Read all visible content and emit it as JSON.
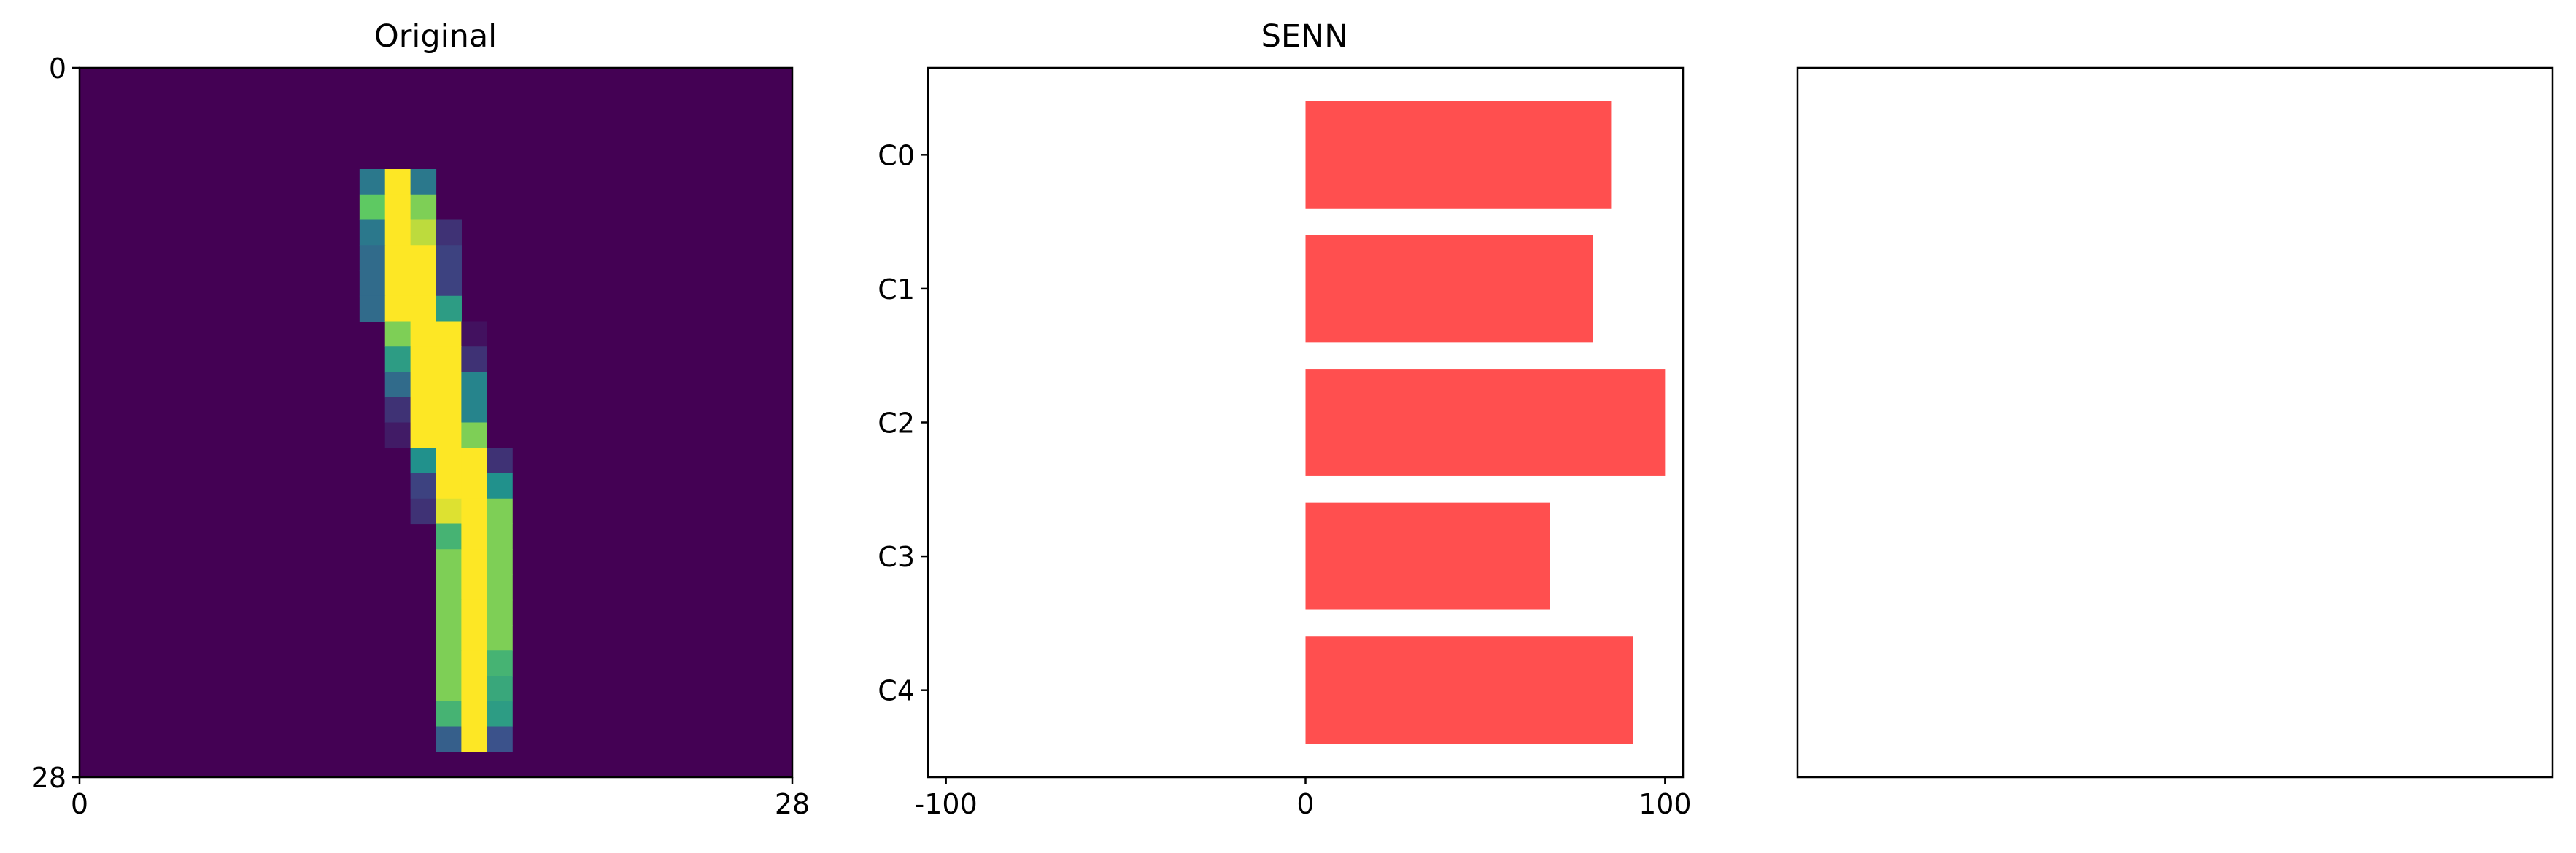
{
  "chart_data": [
    {
      "type": "heatmap",
      "title": "Original",
      "xlim": [
        0,
        28
      ],
      "ylim": [
        28,
        0
      ],
      "xticks": [
        "0",
        "28"
      ],
      "yticks": [
        "0",
        "28"
      ],
      "colormap": "viridis",
      "value_range": [
        0,
        1
      ],
      "pixels": [
        {
          "row": 4,
          "col": 11,
          "v": 0.4
        },
        {
          "row": 4,
          "col": 12,
          "v": 1.0
        },
        {
          "row": 4,
          "col": 13,
          "v": 0.4
        },
        {
          "row": 5,
          "col": 11,
          "v": 0.75
        },
        {
          "row": 5,
          "col": 12,
          "v": 1.0
        },
        {
          "row": 5,
          "col": 13,
          "v": 0.8
        },
        {
          "row": 6,
          "col": 11,
          "v": 0.4
        },
        {
          "row": 6,
          "col": 12,
          "v": 1.0
        },
        {
          "row": 6,
          "col": 13,
          "v": 0.9
        },
        {
          "row": 6,
          "col": 14,
          "v": 0.15
        },
        {
          "row": 7,
          "col": 11,
          "v": 0.35
        },
        {
          "row": 7,
          "col": 12,
          "v": 1.0
        },
        {
          "row": 7,
          "col": 13,
          "v": 1.0
        },
        {
          "row": 7,
          "col": 14,
          "v": 0.2
        },
        {
          "row": 8,
          "col": 11,
          "v": 0.35
        },
        {
          "row": 8,
          "col": 12,
          "v": 1.0
        },
        {
          "row": 8,
          "col": 13,
          "v": 1.0
        },
        {
          "row": 8,
          "col": 14,
          "v": 0.2
        },
        {
          "row": 9,
          "col": 11,
          "v": 0.35
        },
        {
          "row": 9,
          "col": 12,
          "v": 1.0
        },
        {
          "row": 9,
          "col": 13,
          "v": 1.0
        },
        {
          "row": 9,
          "col": 14,
          "v": 0.55
        },
        {
          "row": 10,
          "col": 12,
          "v": 0.8
        },
        {
          "row": 10,
          "col": 13,
          "v": 1.0
        },
        {
          "row": 10,
          "col": 14,
          "v": 1.0
        },
        {
          "row": 10,
          "col": 15,
          "v": 0.05
        },
        {
          "row": 11,
          "col": 12,
          "v": 0.55
        },
        {
          "row": 11,
          "col": 13,
          "v": 1.0
        },
        {
          "row": 11,
          "col": 14,
          "v": 1.0
        },
        {
          "row": 11,
          "col": 15,
          "v": 0.15
        },
        {
          "row": 12,
          "col": 12,
          "v": 0.35
        },
        {
          "row": 12,
          "col": 13,
          "v": 1.0
        },
        {
          "row": 12,
          "col": 14,
          "v": 1.0
        },
        {
          "row": 12,
          "col": 15,
          "v": 0.45
        },
        {
          "row": 13,
          "col": 12,
          "v": 0.15
        },
        {
          "row": 13,
          "col": 13,
          "v": 1.0
        },
        {
          "row": 13,
          "col": 14,
          "v": 1.0
        },
        {
          "row": 13,
          "col": 15,
          "v": 0.45
        },
        {
          "row": 14,
          "col": 12,
          "v": 0.08
        },
        {
          "row": 14,
          "col": 13,
          "v": 1.0
        },
        {
          "row": 14,
          "col": 14,
          "v": 1.0
        },
        {
          "row": 14,
          "col": 15,
          "v": 0.8
        },
        {
          "row": 15,
          "col": 13,
          "v": 0.5
        },
        {
          "row": 15,
          "col": 14,
          "v": 1.0
        },
        {
          "row": 15,
          "col": 15,
          "v": 1.0
        },
        {
          "row": 15,
          "col": 16,
          "v": 0.15
        },
        {
          "row": 16,
          "col": 13,
          "v": 0.2
        },
        {
          "row": 16,
          "col": 14,
          "v": 1.0
        },
        {
          "row": 16,
          "col": 15,
          "v": 1.0
        },
        {
          "row": 16,
          "col": 16,
          "v": 0.5
        },
        {
          "row": 17,
          "col": 13,
          "v": 0.15
        },
        {
          "row": 17,
          "col": 14,
          "v": 0.95
        },
        {
          "row": 17,
          "col": 15,
          "v": 1.0
        },
        {
          "row": 17,
          "col": 16,
          "v": 0.8
        },
        {
          "row": 18,
          "col": 14,
          "v": 0.65
        },
        {
          "row": 18,
          "col": 15,
          "v": 1.0
        },
        {
          "row": 18,
          "col": 16,
          "v": 0.8
        },
        {
          "row": 19,
          "col": 14,
          "v": 0.8
        },
        {
          "row": 19,
          "col": 15,
          "v": 1.0
        },
        {
          "row": 19,
          "col": 16,
          "v": 0.8
        },
        {
          "row": 20,
          "col": 14,
          "v": 0.8
        },
        {
          "row": 20,
          "col": 15,
          "v": 1.0
        },
        {
          "row": 20,
          "col": 16,
          "v": 0.8
        },
        {
          "row": 21,
          "col": 14,
          "v": 0.8
        },
        {
          "row": 21,
          "col": 15,
          "v": 1.0
        },
        {
          "row": 21,
          "col": 16,
          "v": 0.8
        },
        {
          "row": 22,
          "col": 14,
          "v": 0.8
        },
        {
          "row": 22,
          "col": 15,
          "v": 1.0
        },
        {
          "row": 22,
          "col": 16,
          "v": 0.8
        },
        {
          "row": 23,
          "col": 14,
          "v": 0.8
        },
        {
          "row": 23,
          "col": 15,
          "v": 1.0
        },
        {
          "row": 23,
          "col": 16,
          "v": 0.65
        },
        {
          "row": 24,
          "col": 14,
          "v": 0.8
        },
        {
          "row": 24,
          "col": 15,
          "v": 1.0
        },
        {
          "row": 24,
          "col": 16,
          "v": 0.6
        },
        {
          "row": 25,
          "col": 14,
          "v": 0.65
        },
        {
          "row": 25,
          "col": 15,
          "v": 1.0
        },
        {
          "row": 25,
          "col": 16,
          "v": 0.55
        },
        {
          "row": 26,
          "col": 14,
          "v": 0.3
        },
        {
          "row": 26,
          "col": 15,
          "v": 1.0
        },
        {
          "row": 26,
          "col": 16,
          "v": 0.25
        }
      ]
    },
    {
      "type": "bar",
      "orientation": "horizontal",
      "title": "SENN",
      "categories": [
        "C0",
        "C1",
        "C2",
        "C3",
        "C4"
      ],
      "values": [
        85,
        80,
        100,
        68,
        91
      ],
      "color": "#ff4f4f",
      "xlim": [
        -105,
        105
      ],
      "xticks": [
        -100,
        0,
        100
      ],
      "xtick_labels": [
        "-100",
        "0",
        "100"
      ]
    },
    {
      "type": "table",
      "title": "",
      "note": ""
    }
  ]
}
